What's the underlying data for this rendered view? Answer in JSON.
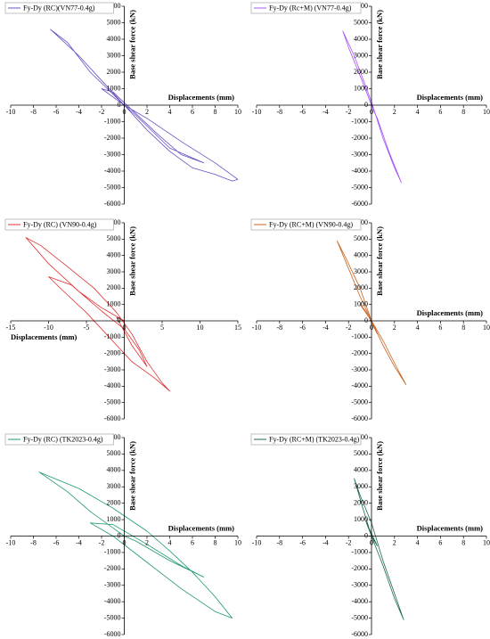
{
  "chart_data": [
    {
      "type": "line",
      "xlabel": "Displacements (mm)",
      "ylabel": "Base shear force (kN)",
      "xlim": [
        -10,
        10
      ],
      "xticks": [
        -10,
        -8,
        -6,
        -4,
        -2,
        0,
        2,
        4,
        6,
        8,
        10
      ],
      "ylim": [
        -6000,
        6000
      ],
      "yticks": [
        -6000,
        -5000,
        -4000,
        -3000,
        -2000,
        -1000,
        0,
        1000,
        2000,
        3000,
        4000,
        5000,
        6000
      ],
      "x": [
        0,
        -2,
        -4,
        -6.5,
        -5,
        -3,
        0,
        2,
        4,
        6,
        8,
        9.5,
        10,
        8,
        5,
        2,
        0,
        -2,
        -1,
        1,
        3,
        5,
        7,
        4,
        1,
        0
      ],
      "series": [
        {
          "name": "Fy-Dy (RC)(VN77-0.4g)",
          "color": "#6a4fc4",
          "values": [
            0,
            1500,
            3000,
            4600,
            3800,
            2000,
            0,
            -1500,
            -2800,
            -3800,
            -4200,
            -4600,
            -4500,
            -3500,
            -2200,
            -800,
            0,
            1000,
            800,
            -500,
            -1800,
            -3000,
            -3500,
            -2600,
            -600,
            0
          ]
        }
      ]
    },
    {
      "type": "line",
      "xlabel": "Displacements (mm)",
      "ylabel": "Base shear force (kN)",
      "xlim": [
        -10,
        10
      ],
      "xticks": [
        -10,
        -8,
        -6,
        -4,
        -2,
        0,
        2,
        4,
        6,
        8,
        10
      ],
      "ylim": [
        -6000,
        6000
      ],
      "yticks": [
        -6000,
        -5000,
        -4000,
        -3000,
        -2000,
        -1000,
        0,
        1000,
        2000,
        3000,
        4000,
        5000,
        6000
      ],
      "x": [
        0,
        -1,
        -2,
        -2.5,
        -1.5,
        0,
        1,
        2,
        2.6,
        1.5,
        0.5,
        0,
        -0.5,
        0.3,
        0
      ],
      "series": [
        {
          "name": "Fy-Dy (Rc+M) (VN77-0.4g)",
          "color": "#a855f7",
          "values": [
            0,
            1800,
            3500,
            4500,
            3000,
            200,
            -2000,
            -3800,
            -4700,
            -2800,
            -800,
            0,
            900,
            -500,
            0
          ]
        }
      ]
    },
    {
      "type": "line",
      "xlabel": "Displacements (mm)",
      "ylabel": "Base shear force (kN)",
      "xlim": [
        -15,
        15
      ],
      "xticks": [
        -15,
        -10,
        -5,
        0,
        5,
        10,
        15
      ],
      "ylim": [
        -6000,
        6000
      ],
      "yticks": [
        -6000,
        -5000,
        -4000,
        -3000,
        -2000,
        -1000,
        0,
        1000,
        2000,
        3000,
        4000,
        5000,
        6000
      ],
      "x": [
        0,
        -3,
        -6,
        -10,
        -13,
        -11,
        -8,
        -4,
        -1,
        1,
        3,
        5,
        6,
        4,
        1,
        -2,
        -5,
        -8,
        -10,
        -7,
        -3,
        0,
        2,
        3,
        1,
        -1,
        0
      ],
      "series": [
        {
          "name": "Fy-Dy (RC) (VN90-0.4g)",
          "color": "#e03030",
          "values": [
            0,
            800,
            1800,
            3500,
            5100,
            4600,
            3500,
            2000,
            500,
            -800,
            -2500,
            -3800,
            -4300,
            -3500,
            -2500,
            -1000,
            500,
            1800,
            2700,
            2200,
            600,
            -500,
            -1800,
            -2800,
            -1500,
            200,
            0
          ]
        }
      ]
    },
    {
      "type": "line",
      "xlabel": "Displacements (mm)",
      "ylabel": "Base shear force (kN)",
      "xlim": [
        -10,
        10
      ],
      "xticks": [
        -10,
        -8,
        -6,
        -4,
        -2,
        0,
        2,
        4,
        6,
        8,
        10
      ],
      "ylim": [
        -6000,
        6000
      ],
      "yticks": [
        -6000,
        -5000,
        -4000,
        -3000,
        -2000,
        -1000,
        0,
        1000,
        2000,
        3000,
        4000,
        5000,
        6000
      ],
      "x": [
        0,
        -1,
        -2,
        -3,
        -2.2,
        -1,
        0,
        1,
        2,
        3,
        2.3,
        1,
        0,
        -1,
        -0.5,
        0.5,
        0
      ],
      "series": [
        {
          "name": "Fy-Dy (RC+M) (VN90-0.4g)",
          "color": "#c8641e",
          "values": [
            0,
            1500,
            3200,
            4900,
            3800,
            2000,
            0,
            -1500,
            -2800,
            -3900,
            -3000,
            -1200,
            0,
            1000,
            600,
            -800,
            0
          ]
        }
      ]
    },
    {
      "type": "line",
      "xlabel": "Displacements (mm)",
      "ylabel": "Base shear force (kN)",
      "xlim": [
        -10,
        10
      ],
      "xticks": [
        -10,
        -8,
        -6,
        -4,
        -2,
        0,
        2,
        4,
        6,
        8,
        10
      ],
      "ylim": [
        -6000,
        6000
      ],
      "yticks": [
        -6000,
        -5000,
        -4000,
        -3000,
        -2000,
        -1000,
        0,
        1000,
        2000,
        3000,
        4000,
        5000,
        6000
      ],
      "x": [
        0,
        -3,
        -5,
        -7.5,
        -4,
        -1,
        2,
        4,
        6,
        8,
        9.5,
        8,
        5,
        2,
        -1,
        -3,
        -1,
        2,
        5,
        7,
        4,
        1,
        0
      ],
      "series": [
        {
          "name": "Fy-Dy (RC) (TK2023-0.4g)",
          "color": "#1e9a6a",
          "values": [
            0,
            1500,
            2700,
            3900,
            2900,
            1700,
            300,
            -900,
            -2200,
            -3700,
            -5000,
            -4600,
            -3200,
            -1600,
            0,
            800,
            700,
            -500,
            -1800,
            -2500,
            -1500,
            -300,
            0
          ]
        }
      ]
    },
    {
      "type": "line",
      "xlabel": "Displacements (mm)",
      "ylabel": "Base shear force (kN)",
      "xlim": [
        -10,
        10
      ],
      "xticks": [
        -10,
        -8,
        -6,
        -4,
        -2,
        0,
        2,
        4,
        6,
        8,
        10
      ],
      "ylim": [
        -6000,
        6000
      ],
      "yticks": [
        -6000,
        -5000,
        -4000,
        -3000,
        -2000,
        -1000,
        0,
        1000,
        2000,
        3000,
        4000,
        5000,
        6000
      ],
      "x": [
        0,
        -0.8,
        -1.5,
        -1,
        0,
        1,
        2,
        2.8,
        2,
        1,
        0,
        -0.5,
        0.5,
        0
      ],
      "series": [
        {
          "name": "Fy-Dy (RC+M) (TK2023-0.4g)",
          "color": "#1e6b4a",
          "values": [
            0,
            1800,
            3500,
            2500,
            800,
            -1500,
            -3500,
            -5100,
            -3800,
            -1800,
            0,
            900,
            -600,
            0
          ]
        }
      ]
    }
  ]
}
